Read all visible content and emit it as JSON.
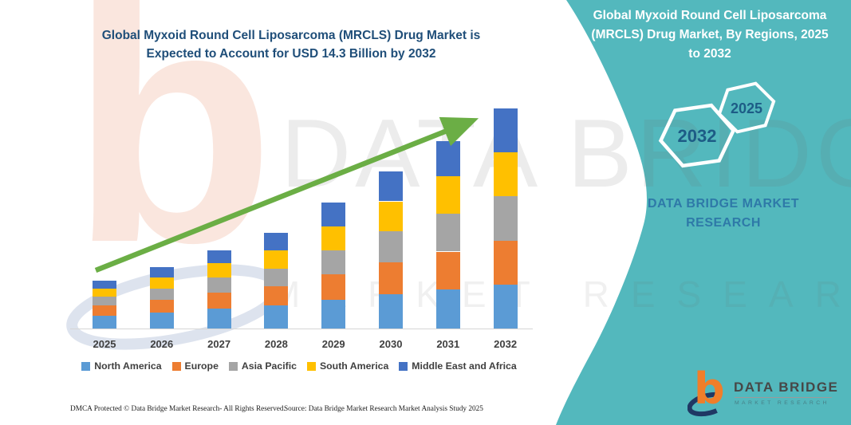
{
  "header": {
    "title": "Global Myxoid Round Cell Liposarcoma (MRCLS) Drug Market is Expected to Account for USD 14.3 Billion by 2032"
  },
  "sidebar": {
    "title": "Global Myxoid Round Cell Liposarcoma (MRCLS) Drug Market, By Regions, 2025 to 2032",
    "hexagons": [
      {
        "label": "2032"
      },
      {
        "label": "2025"
      }
    ],
    "brand_text": "DATA BRIDGE MARKET RESEARCH",
    "background_color": "#53B8BD"
  },
  "watermarks": {
    "brand_large": "DATA BRIDGE",
    "brand_sub": "MARKET RESEARCH",
    "logo_glyph": "b"
  },
  "chart_data": {
    "type": "bar",
    "stacked": true,
    "title": "Global Myxoid Round Cell Liposarcoma (MRCLS) Drug Market is Expected to Account for USD 14.3 Billion by 2032",
    "unit": "USD Billion",
    "categories": [
      "2025",
      "2026",
      "2027",
      "2028",
      "2029",
      "2030",
      "2031",
      "2032"
    ],
    "series": [
      {
        "name": "North America",
        "color": "#5B9BD5",
        "values": [
          0.84,
          1.04,
          1.28,
          1.49,
          1.89,
          2.24,
          2.56,
          2.86
        ]
      },
      {
        "name": "Europe",
        "color": "#ED7D31",
        "values": [
          0.65,
          0.84,
          1.07,
          1.24,
          1.64,
          2.04,
          2.44,
          2.86
        ]
      },
      {
        "name": "Asia Pacific",
        "color": "#A5A5A5",
        "values": [
          0.56,
          0.72,
          0.97,
          1.18,
          1.56,
          2.04,
          2.44,
          2.86
        ]
      },
      {
        "name": "South America",
        "color": "#FFC000",
        "values": [
          0.53,
          0.72,
          0.92,
          1.18,
          1.56,
          1.94,
          2.44,
          2.86
        ]
      },
      {
        "name": "Middle East and Africa",
        "color": "#4472C4",
        "values": [
          0.52,
          0.68,
          0.86,
          1.11,
          1.55,
          1.94,
          2.32,
          2.86
        ]
      }
    ],
    "totals": [
      3.1,
      4.0,
      5.1,
      6.2,
      8.2,
      10.2,
      12.2,
      14.3
    ],
    "ylim": [
      0,
      15
    ],
    "grid": false,
    "legend_position": "bottom",
    "trend_arrow": true,
    "arrow_color": "#6BAE45"
  },
  "footer": {
    "dmca": "DMCA Protected © Data Bridge Market Research-  All Rights Reserved.",
    "source": "Source: Data Bridge Market Research  Market Analysis Study 2025"
  },
  "logo": {
    "brand": "DATA BRIDGE",
    "tagline": "MARKET RESEARCH",
    "orange": "#F07E2A",
    "navy": "#1F3864"
  }
}
